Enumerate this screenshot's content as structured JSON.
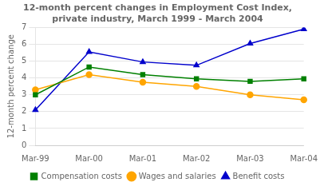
{
  "chart_data": {
    "type": "line",
    "title": "12-month percent changes in Employment Cost Index,\nprivate industry, March 1999 - March 2004",
    "y_label": "12-month percent change",
    "categories": [
      "Mar-99",
      "Mar-00",
      "Mar-01",
      "Mar-02",
      "Mar-03",
      "Mar-04"
    ],
    "series": [
      {
        "name": "Compensation costs",
        "color": "#008000",
        "marker": "square",
        "values": [
          3.0,
          4.65,
          4.2,
          3.95,
          3.8,
          3.95
        ]
      },
      {
        "name": "Wages and salaries",
        "color": "#FFA500",
        "marker": "circle",
        "values": [
          3.3,
          4.2,
          3.75,
          3.5,
          3.0,
          2.7
        ]
      },
      {
        "name": "Benefit costs",
        "color": "#0000CC",
        "marker": "triangle",
        "values": [
          2.1,
          5.55,
          4.95,
          4.75,
          6.05,
          6.9
        ]
      }
    ],
    "ylim": [
      0,
      7
    ],
    "yticks": [
      0,
      1,
      2,
      3,
      4,
      5,
      6,
      7
    ],
    "grid": "y",
    "legend": "bottom"
  }
}
